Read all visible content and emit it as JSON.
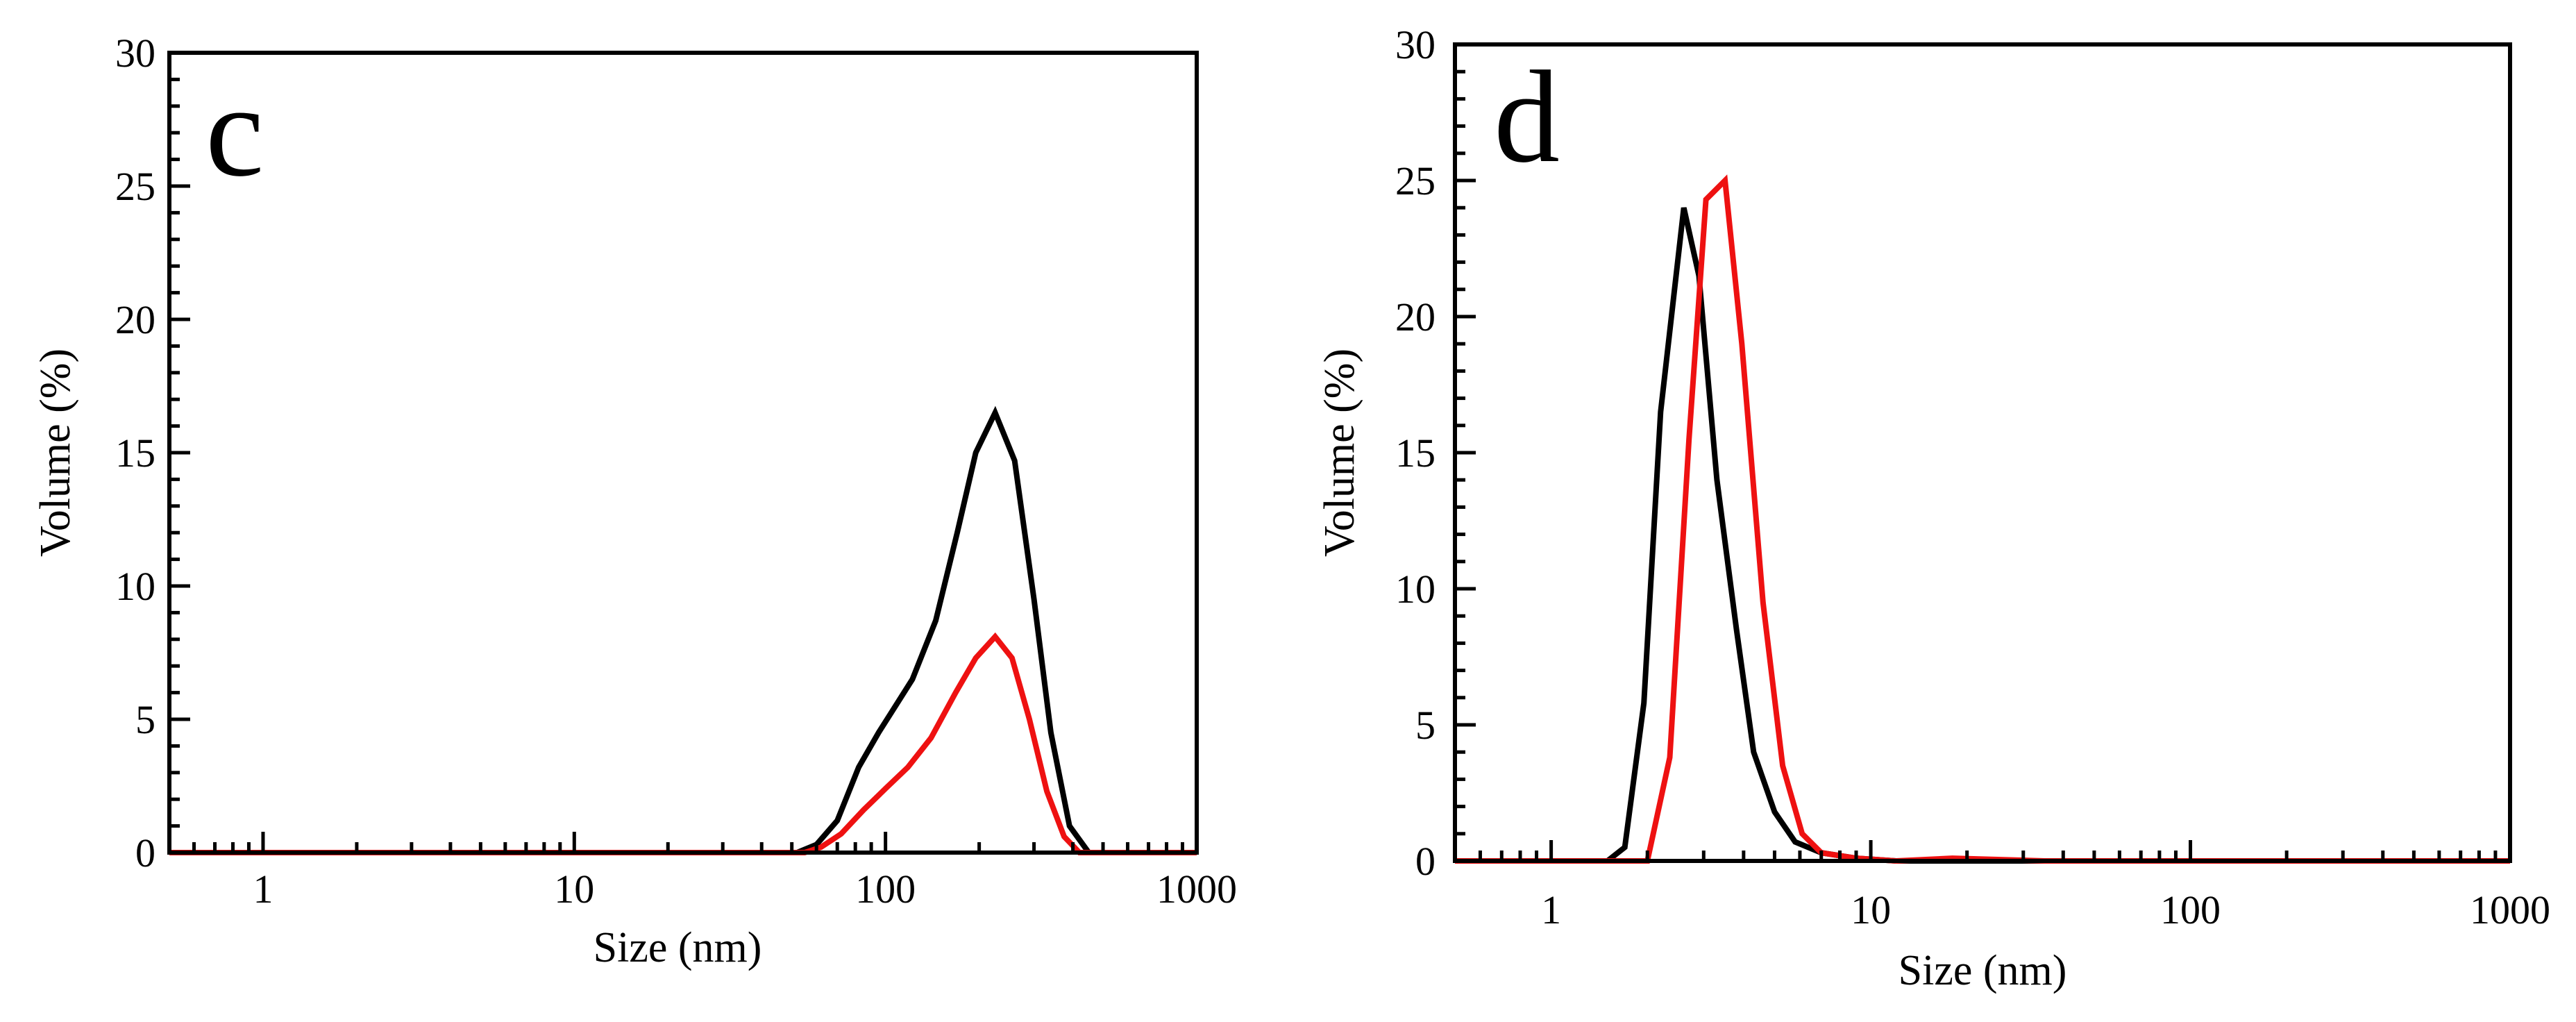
{
  "chart_data": [
    {
      "type": "line",
      "panel_label": "c",
      "xlabel": "Size (nm)",
      "ylabel": "Volume (%)",
      "xscale": "log",
      "xlim": [
        0.5,
        1000
      ],
      "ylim": [
        0,
        30
      ],
      "x_tick_labels": [
        {
          "value": 1,
          "label": "1"
        },
        {
          "value": 10,
          "label": "10"
        },
        {
          "value": 100,
          "label": "100"
        },
        {
          "value": 1000,
          "label": "1000"
        }
      ],
      "y_tick_labels": [
        {
          "value": 0,
          "label": "0"
        },
        {
          "value": 5,
          "label": "5"
        },
        {
          "value": 10,
          "label": "10"
        },
        {
          "value": 15,
          "label": "15"
        },
        {
          "value": 20,
          "label": "20"
        },
        {
          "value": 25,
          "label": "25"
        },
        {
          "value": 30,
          "label": "30"
        }
      ],
      "series": [
        {
          "name": "black",
          "color": "#000000",
          "points": [
            [
              0.5,
              0
            ],
            [
              52,
              0
            ],
            [
              60,
              0.3
            ],
            [
              70,
              1.2
            ],
            [
              82,
              3.2
            ],
            [
              95,
              4.5
            ],
            [
              105,
              5.3
            ],
            [
              122,
              6.5
            ],
            [
              145,
              8.7
            ],
            [
              170,
              12.0
            ],
            [
              195,
              15.0
            ],
            [
              225,
              16.5
            ],
            [
              260,
              14.7
            ],
            [
              300,
              9.5
            ],
            [
              340,
              4.5
            ],
            [
              390,
              1.0
            ],
            [
              450,
              0
            ],
            [
              1000,
              0
            ]
          ]
        },
        {
          "name": "red",
          "color": "#ee1111",
          "points": [
            [
              0.5,
              0
            ],
            [
              55,
              0
            ],
            [
              62,
              0.2
            ],
            [
              72,
              0.7
            ],
            [
              85,
              1.6
            ],
            [
              100,
              2.4
            ],
            [
              118,
              3.2
            ],
            [
              140,
              4.3
            ],
            [
              168,
              6.0
            ],
            [
              195,
              7.3
            ],
            [
              225,
              8.1
            ],
            [
              255,
              7.3
            ],
            [
              290,
              5.0
            ],
            [
              330,
              2.3
            ],
            [
              375,
              0.6
            ],
            [
              420,
              0
            ],
            [
              1000,
              0
            ]
          ]
        }
      ]
    },
    {
      "type": "line",
      "panel_label": "d",
      "xlabel": "Size (nm)",
      "ylabel": "Volume (%)",
      "xscale": "log",
      "xlim": [
        0.5,
        1000
      ],
      "ylim": [
        0,
        30
      ],
      "x_tick_labels": [
        {
          "value": 1,
          "label": "1"
        },
        {
          "value": 10,
          "label": "10"
        },
        {
          "value": 100,
          "label": "100"
        },
        {
          "value": 1000,
          "label": "1000"
        }
      ],
      "y_tick_labels": [
        {
          "value": 0,
          "label": "0"
        },
        {
          "value": 5,
          "label": "5"
        },
        {
          "value": 10,
          "label": "10"
        },
        {
          "value": 15,
          "label": "15"
        },
        {
          "value": 20,
          "label": "20"
        },
        {
          "value": 25,
          "label": "25"
        },
        {
          "value": 30,
          "label": "30"
        }
      ],
      "series": [
        {
          "name": "black",
          "color": "#000000",
          "points": [
            [
              0.5,
              0
            ],
            [
              1.5,
              0
            ],
            [
              1.7,
              0.5
            ],
            [
              1.95,
              5.8
            ],
            [
              2.2,
              16.5
            ],
            [
              2.6,
              24.0
            ],
            [
              2.9,
              21.5
            ],
            [
              3.3,
              14.0
            ],
            [
              3.8,
              8.5
            ],
            [
              4.3,
              4.0
            ],
            [
              5.0,
              1.8
            ],
            [
              5.8,
              0.7
            ],
            [
              7.0,
              0.3
            ],
            [
              9.0,
              0.1
            ],
            [
              12,
              0
            ],
            [
              1000,
              0
            ]
          ]
        },
        {
          "name": "red",
          "color": "#ee1111",
          "points": [
            [
              0.5,
              0
            ],
            [
              2.0,
              0
            ],
            [
              2.35,
              3.8
            ],
            [
              2.7,
              15.5
            ],
            [
              3.05,
              24.3
            ],
            [
              3.5,
              25.0
            ],
            [
              3.95,
              19.0
            ],
            [
              4.6,
              9.5
            ],
            [
              5.3,
              3.5
            ],
            [
              6.1,
              1.0
            ],
            [
              7.0,
              0.3
            ],
            [
              9.0,
              0.1
            ],
            [
              12,
              0
            ],
            [
              18,
              0.1
            ],
            [
              25,
              0.05
            ],
            [
              35,
              0
            ],
            [
              1000,
              0
            ]
          ]
        }
      ]
    }
  ]
}
